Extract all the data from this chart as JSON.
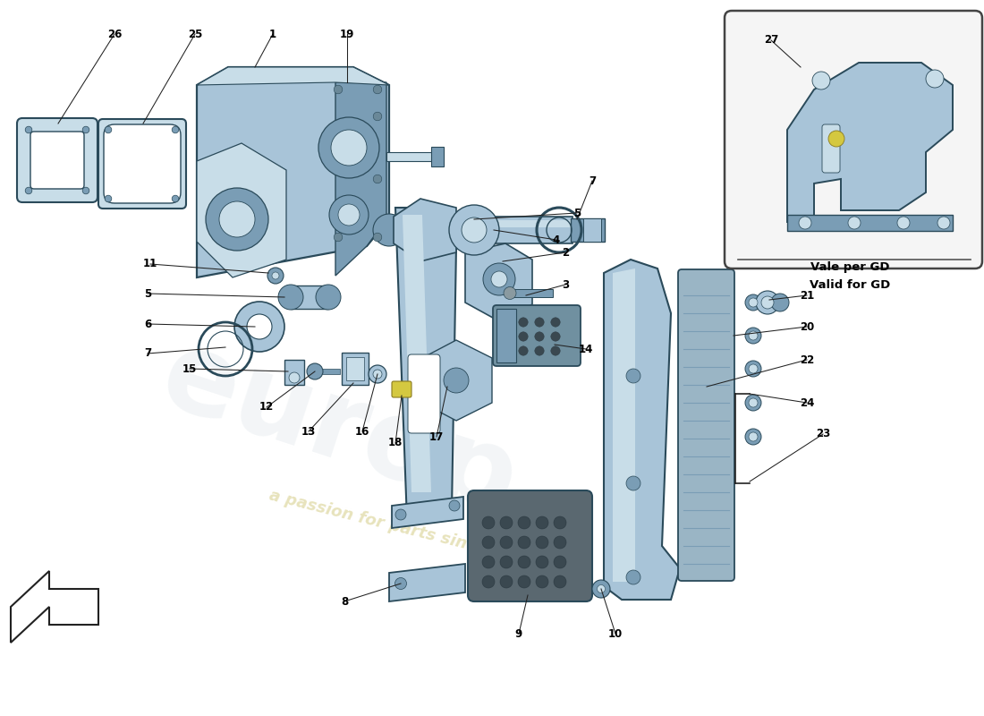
{
  "background_color": "#ffffff",
  "part_color": "#a8c4d8",
  "part_color_dark": "#7a9db5",
  "part_color_light": "#c8dde8",
  "edge_color": "#2a4a5a",
  "line_color": "#222222",
  "text_color": "#000000",
  "rubber_color": "#5a6870",
  "rubber_dot_color": "#3a4850",
  "inset_label1": "Vale per GD",
  "inset_label2": "Valid for GD",
  "fig_width": 11.0,
  "fig_height": 8.0,
  "dpi": 100
}
